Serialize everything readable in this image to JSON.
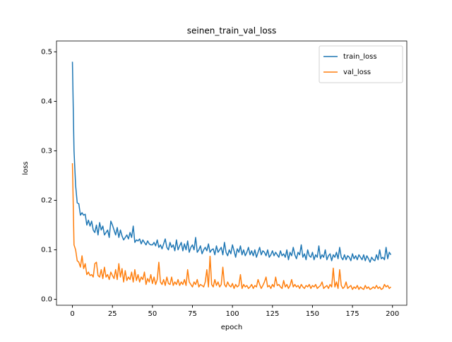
{
  "chart_data": {
    "type": "line",
    "title": "seinen_train_val_loss",
    "x_label": "epoch",
    "y_label": "loss",
    "legend": "upper right",
    "x": [
      0,
      1,
      2,
      3,
      4,
      5,
      6,
      7,
      8,
      9,
      10,
      11,
      12,
      13,
      14,
      15,
      16,
      17,
      18,
      19,
      20,
      21,
      22,
      23,
      24,
      25,
      26,
      27,
      28,
      29,
      30,
      31,
      32,
      33,
      34,
      35,
      36,
      37,
      38,
      39,
      40,
      41,
      42,
      43,
      44,
      45,
      46,
      47,
      48,
      49,
      50,
      51,
      52,
      53,
      54,
      55,
      56,
      57,
      58,
      59,
      60,
      61,
      62,
      63,
      64,
      65,
      66,
      67,
      68,
      69,
      70,
      71,
      72,
      73,
      74,
      75,
      76,
      77,
      78,
      79,
      80,
      81,
      82,
      83,
      84,
      85,
      86,
      87,
      88,
      89,
      90,
      91,
      92,
      93,
      94,
      95,
      96,
      97,
      98,
      99,
      100,
      101,
      102,
      103,
      104,
      105,
      106,
      107,
      108,
      109,
      110,
      111,
      112,
      113,
      114,
      115,
      116,
      117,
      118,
      119,
      120,
      121,
      122,
      123,
      124,
      125,
      126,
      127,
      128,
      129,
      130,
      131,
      132,
      133,
      134,
      135,
      136,
      137,
      138,
      139,
      140,
      141,
      142,
      143,
      144,
      145,
      146,
      147,
      148,
      149,
      150,
      151,
      152,
      153,
      154,
      155,
      156,
      157,
      158,
      159,
      160,
      161,
      162,
      163,
      164,
      165,
      166,
      167,
      168,
      169,
      170,
      171,
      172,
      173,
      174,
      175,
      176,
      177,
      178,
      179,
      180,
      181,
      182,
      183,
      184,
      185,
      186,
      187,
      188,
      189,
      190,
      191,
      192,
      193,
      194,
      195,
      196,
      197,
      198,
      199
    ],
    "series": [
      {
        "name": "train_loss",
        "color": "#1f77b4",
        "values": [
          0.48,
          0.3,
          0.23,
          0.195,
          0.193,
          0.17,
          0.175,
          0.17,
          0.172,
          0.15,
          0.16,
          0.148,
          0.158,
          0.14,
          0.135,
          0.15,
          0.13,
          0.155,
          0.14,
          0.148,
          0.13,
          0.135,
          0.14,
          0.125,
          0.158,
          0.15,
          0.14,
          0.13,
          0.145,
          0.125,
          0.14,
          0.128,
          0.12,
          0.125,
          0.13,
          0.122,
          0.135,
          0.125,
          0.148,
          0.115,
          0.12,
          0.118,
          0.122,
          0.112,
          0.12,
          0.115,
          0.11,
          0.118,
          0.112,
          0.11,
          0.11,
          0.115,
          0.108,
          0.12,
          0.105,
          0.11,
          0.102,
          0.112,
          0.122,
          0.105,
          0.1,
          0.115,
          0.105,
          0.11,
          0.098,
          0.12,
          0.1,
          0.108,
          0.115,
          0.098,
          0.112,
          0.1,
          0.118,
          0.095,
          0.105,
          0.11,
          0.1,
          0.125,
          0.095,
          0.1,
          0.108,
          0.092,
          0.1,
          0.105,
          0.098,
          0.112,
          0.095,
          0.1,
          0.102,
          0.09,
          0.108,
          0.095,
          0.1,
          0.105,
          0.09,
          0.115,
          0.095,
          0.088,
          0.1,
          0.092,
          0.11,
          0.098,
          0.085,
          0.102,
          0.095,
          0.108,
          0.09,
          0.1,
          0.088,
          0.095,
          0.105,
          0.09,
          0.098,
          0.088,
          0.1,
          0.085,
          0.095,
          0.105,
          0.09,
          0.098,
          0.095,
          0.088,
          0.1,
          0.085,
          0.09,
          0.098,
          0.088,
          0.095,
          0.09,
          0.085,
          0.098,
          0.088,
          0.092,
          0.085,
          0.1,
          0.08,
          0.095,
          0.088,
          0.105,
          0.09,
          0.082,
          0.095,
          0.09,
          0.11,
          0.085,
          0.092,
          0.08,
          0.1,
          0.088,
          0.085,
          0.095,
          0.08,
          0.09,
          0.085,
          0.108,
          0.082,
          0.09,
          0.085,
          0.1,
          0.08,
          0.088,
          0.092,
          0.078,
          0.09,
          0.085,
          0.095,
          0.082,
          0.105,
          0.085,
          0.08,
          0.09,
          0.08,
          0.088,
          0.085,
          0.078,
          0.092,
          0.082,
          0.088,
          0.08,
          0.09,
          0.085,
          0.08,
          0.09,
          0.078,
          0.088,
          0.082,
          0.075,
          0.085,
          0.08,
          0.078,
          0.09,
          0.08,
          0.1,
          0.082,
          0.085,
          0.08,
          0.105,
          0.082,
          0.095,
          0.09
        ]
      },
      {
        "name": "val_loss",
        "color": "#ff7f0e",
        "values": [
          0.275,
          0.11,
          0.1,
          0.078,
          0.075,
          0.065,
          0.088,
          0.062,
          0.072,
          0.05,
          0.055,
          0.048,
          0.05,
          0.045,
          0.072,
          0.075,
          0.048,
          0.045,
          0.06,
          0.042,
          0.065,
          0.045,
          0.05,
          0.04,
          0.055,
          0.048,
          0.042,
          0.06,
          0.04,
          0.072,
          0.045,
          0.062,
          0.035,
          0.058,
          0.038,
          0.045,
          0.04,
          0.055,
          0.035,
          0.06,
          0.038,
          0.05,
          0.035,
          0.045,
          0.04,
          0.055,
          0.03,
          0.042,
          0.035,
          0.05,
          0.032,
          0.045,
          0.03,
          0.04,
          0.075,
          0.035,
          0.03,
          0.04,
          0.028,
          0.045,
          0.032,
          0.03,
          0.045,
          0.028,
          0.035,
          0.03,
          0.04,
          0.028,
          0.035,
          0.03,
          0.04,
          0.028,
          0.06,
          0.035,
          0.03,
          0.025,
          0.035,
          0.03,
          0.04,
          0.025,
          0.03,
          0.028,
          0.025,
          0.035,
          0.06,
          0.025,
          0.087,
          0.03,
          0.025,
          0.04,
          0.028,
          0.035,
          0.025,
          0.03,
          0.065,
          0.03,
          0.025,
          0.035,
          0.028,
          0.025,
          0.032,
          0.022,
          0.03,
          0.025,
          0.028,
          0.05,
          0.022,
          0.03,
          0.025,
          0.028,
          0.022,
          0.025,
          0.03,
          0.022,
          0.028,
          0.025,
          0.04,
          0.03,
          0.022,
          0.028,
          0.035,
          0.045,
          0.025,
          0.028,
          0.022,
          0.03,
          0.025,
          0.045,
          0.028,
          0.03,
          0.025,
          0.022,
          0.038,
          0.025,
          0.03,
          0.022,
          0.028,
          0.04,
          0.025,
          0.03,
          0.025,
          0.028,
          0.022,
          0.03,
          0.025,
          0.022,
          0.028,
          0.025,
          0.03,
          0.022,
          0.028,
          0.025,
          0.03,
          0.022,
          0.025,
          0.028,
          0.035,
          0.022,
          0.025,
          0.028,
          0.022,
          0.03,
          0.025,
          0.063,
          0.025,
          0.035,
          0.022,
          0.06,
          0.028,
          0.022,
          0.025,
          0.035,
          0.022,
          0.025,
          0.028,
          0.02,
          0.025,
          0.022,
          0.028,
          0.02,
          0.025,
          0.022,
          0.02,
          0.028,
          0.022,
          0.025,
          0.02,
          0.022,
          0.025,
          0.022,
          0.028,
          0.022,
          0.025,
          0.02,
          0.022,
          0.03,
          0.025,
          0.028,
          0.022,
          0.025
        ]
      }
    ],
    "xlim": [
      -9.95,
      208.95
    ],
    "xticks": [
      0,
      25,
      50,
      75,
      100,
      125,
      150,
      175,
      200
    ],
    "ylim": [
      -0.012,
      0.522
    ],
    "yticks": [
      {
        "value": 0,
        "label": "0.0"
      },
      0.1,
      0.2,
      0.3,
      0.4,
      0.5
    ]
  }
}
